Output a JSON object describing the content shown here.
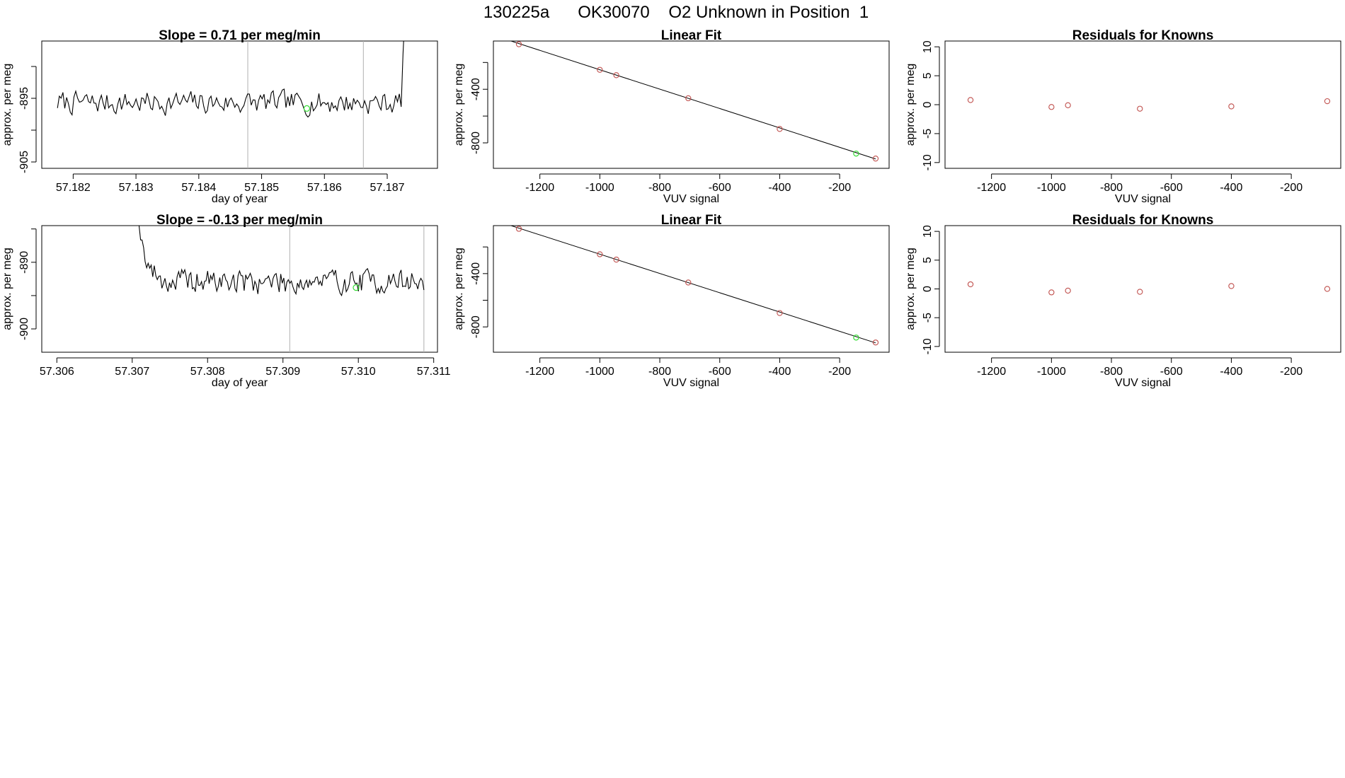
{
  "figure": {
    "suptitle": "130225a      OK30070    O2 Unknown in Position  1"
  },
  "colors": {
    "trace": "#000000",
    "known_point": "#c0504d",
    "unknown_point": "#33dd33",
    "marker_line": "#b0b0b0"
  },
  "chart_data": [
    {
      "id": "ts1",
      "type": "line",
      "title": "Slope =  0.71  per meg/min",
      "xlabel": "day of year",
      "ylabel": "approx. per meg",
      "xlim": [
        57.1815,
        57.1878
      ],
      "ylim": [
        -906,
        -886
      ],
      "xticks": [
        57.182,
        57.183,
        57.184,
        57.185,
        57.186,
        57.187
      ],
      "xtick_labels": [
        "57.182",
        "57.183",
        "57.184",
        "57.185",
        "57.186",
        "57.187"
      ],
      "yticks": [
        -905,
        -900,
        -895,
        -890
      ],
      "ytick_labels": [
        "-905",
        "",
        "-895",
        ""
      ],
      "trace_start": 57.18175,
      "trace_end": 57.18728,
      "trace_base": -895.7,
      "trace_amp": 1.6,
      "trace_drift": 0.0,
      "trace_seed": 7,
      "spike_start": 57.18722,
      "spike_end": 57.18728,
      "spike_to": -882,
      "vlines": [
        57.18478,
        57.18662
      ],
      "highlight": {
        "x": 57.18572,
        "y": -896.6
      }
    },
    {
      "id": "fit1",
      "type": "scatter",
      "title": "Linear Fit",
      "xlabel": "VUV signal",
      "ylabel": "approx. per meg",
      "xlim": [
        -1355,
        -35
      ],
      "ylim": [
        -990,
        -40
      ],
      "xticks": [
        -1200,
        -1000,
        -800,
        -600,
        -400,
        -200
      ],
      "xtick_labels": [
        "-1200",
        "-1000",
        "-800",
        "-600",
        "-400",
        "-200"
      ],
      "yticks": [
        -800,
        -600,
        -400,
        -200
      ],
      "ytick_labels": [
        "-800",
        "",
        "-400",
        ""
      ],
      "fit_line": {
        "x": [
          -1310,
          -80
        ],
        "y": [
          -30,
          -920
        ]
      },
      "points": [
        {
          "x": -1270,
          "y": -64
        },
        {
          "x": -1000,
          "y": -255
        },
        {
          "x": -945,
          "y": -295
        },
        {
          "x": -705,
          "y": -467
        },
        {
          "x": -400,
          "y": -696
        },
        {
          "x": -80,
          "y": -917
        }
      ],
      "unknown": {
        "x": -145,
        "y": -880
      }
    },
    {
      "id": "res1",
      "type": "scatter",
      "title": "Residuals for Knowns",
      "xlabel": "VUV signal",
      "ylabel": "approx. per meg",
      "xlim": [
        -1355,
        -35
      ],
      "ylim": [
        -11,
        11
      ],
      "xticks": [
        -1200,
        -1000,
        -800,
        -600,
        -400,
        -200
      ],
      "xtick_labels": [
        "-1200",
        "-1000",
        "-800",
        "-600",
        "-400",
        "-200"
      ],
      "yticks": [
        -10,
        -5,
        0,
        5,
        10
      ],
      "ytick_labels": [
        "-10",
        "-5",
        "0",
        "5",
        "10"
      ],
      "points": [
        {
          "x": -1270,
          "y": 0.8
        },
        {
          "x": -1000,
          "y": -0.4
        },
        {
          "x": -945,
          "y": -0.1
        },
        {
          "x": -705,
          "y": -0.7
        },
        {
          "x": -400,
          "y": -0.3
        },
        {
          "x": -80,
          "y": 0.6
        }
      ]
    },
    {
      "id": "ts2",
      "type": "line",
      "title": "Slope =  -0.13  per meg/min",
      "xlabel": "day of year",
      "ylabel": "approx. per meg",
      "xlim": [
        57.3058,
        57.31105
      ],
      "ylim": [
        -903.5,
        -884.5
      ],
      "xticks": [
        57.306,
        57.307,
        57.308,
        57.309,
        57.31,
        57.311
      ],
      "xtick_labels": [
        "57.306",
        "57.307",
        "57.308",
        "57.309",
        "57.310",
        "57.311"
      ],
      "yticks": [
        -900,
        -895,
        -890,
        -885
      ],
      "ytick_labels": [
        "-900",
        "",
        "-890",
        ""
      ],
      "trace_start": 57.30703,
      "trace_end": 57.31087,
      "trace_base": -892.9,
      "trace_amp": 1.7,
      "trace_drift": 0.0,
      "trace_seed": 19,
      "decay_from": -878,
      "decay_span": 0.00045,
      "vlines": [
        57.30909,
        57.31087
      ],
      "highlight": {
        "x": 57.30997,
        "y": -893.8
      }
    },
    {
      "id": "fit2",
      "type": "scatter",
      "title": "Linear Fit",
      "xlabel": "VUV signal",
      "ylabel": "approx. per meg",
      "xlim": [
        -1355,
        -35
      ],
      "ylim": [
        -990,
        -40
      ],
      "xticks": [
        -1200,
        -1000,
        -800,
        -600,
        -400,
        -200
      ],
      "xtick_labels": [
        "-1200",
        "-1000",
        "-800",
        "-600",
        "-400",
        "-200"
      ],
      "yticks": [
        -800,
        -600,
        -400,
        -200
      ],
      "ytick_labels": [
        "-800",
        "",
        "-400",
        ""
      ],
      "fit_line": {
        "x": [
          -1310,
          -80
        ],
        "y": [
          -30,
          -920
        ]
      },
      "points": [
        {
          "x": -1270,
          "y": -64
        },
        {
          "x": -1000,
          "y": -255
        },
        {
          "x": -945,
          "y": -295
        },
        {
          "x": -705,
          "y": -467
        },
        {
          "x": -400,
          "y": -696
        },
        {
          "x": -80,
          "y": -917
        }
      ],
      "unknown": {
        "x": -145,
        "y": -880
      }
    },
    {
      "id": "res2",
      "type": "scatter",
      "title": "Residuals for Knowns",
      "xlabel": "VUV signal",
      "ylabel": "approx. per meg",
      "xlim": [
        -1355,
        -35
      ],
      "ylim": [
        -11,
        11
      ],
      "xticks": [
        -1200,
        -1000,
        -800,
        -600,
        -400,
        -200
      ],
      "xtick_labels": [
        "-1200",
        "-1000",
        "-800",
        "-600",
        "-400",
        "-200"
      ],
      "yticks": [
        -10,
        -5,
        0,
        5,
        10
      ],
      "ytick_labels": [
        "-10",
        "-5",
        "0",
        "5",
        "10"
      ],
      "points": [
        {
          "x": -1270,
          "y": 0.8
        },
        {
          "x": -1000,
          "y": -0.6
        },
        {
          "x": -945,
          "y": -0.3
        },
        {
          "x": -705,
          "y": -0.5
        },
        {
          "x": -400,
          "y": 0.5
        },
        {
          "x": -80,
          "y": 0.0
        }
      ]
    }
  ]
}
